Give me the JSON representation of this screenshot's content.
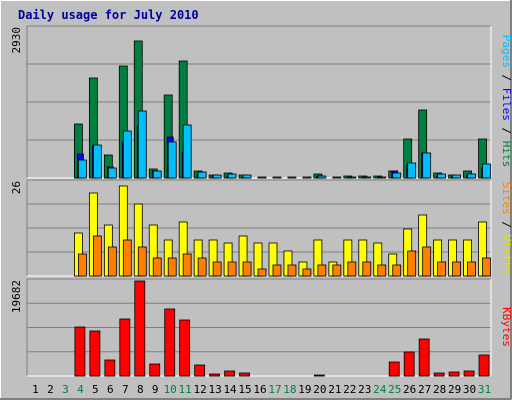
{
  "chart_data": {
    "type": "bar",
    "title": "Daily usage for July 2010",
    "categories": [
      "1",
      "2",
      "3",
      "4",
      "5",
      "6",
      "7",
      "8",
      "9",
      "10",
      "11",
      "12",
      "13",
      "14",
      "15",
      "16",
      "17",
      "18",
      "19",
      "20",
      "21",
      "22",
      "23",
      "24",
      "25",
      "26",
      "27",
      "28",
      "29",
      "30",
      "31"
    ],
    "weekend_days": [
      "3",
      "4",
      "10",
      "11",
      "17",
      "18",
      "24",
      "25",
      "31"
    ],
    "legend_position": "right",
    "grid": true,
    "panels": [
      {
        "id": "hits",
        "max_label": "2930",
        "ylim": [
          0,
          2930
        ],
        "series": [
          {
            "name": "Hits",
            "color": "#008040",
            "values": [
              0,
              0,
              0,
              1050,
              1950,
              450,
              2180,
              2680,
              170,
              1630,
              2280,
              130,
              60,
              90,
              50,
              0,
              0,
              0,
              0,
              70,
              0,
              30,
              30,
              30,
              130,
              770,
              1330,
              90,
              60,
              130,
              760
            ]
          },
          {
            "name": "Files",
            "color": "#0000ff",
            "values": [
              0,
              0,
              0,
              470,
              620,
              210,
              700,
              1020,
              130,
              810,
              500,
              80,
              30,
              40,
              20,
              0,
              0,
              0,
              0,
              30,
              0,
              0,
              0,
              0,
              130,
              260,
              490,
              40,
              20,
              50,
              200
            ]
          },
          {
            "name": "Pages",
            "color": "#00bfff",
            "values": [
              0,
              0,
              0,
              360,
              640,
              190,
              920,
              1300,
              130,
              700,
              1040,
              110,
              50,
              70,
              50,
              10,
              10,
              10,
              10,
              40,
              10,
              20,
              10,
              20,
              90,
              300,
              490,
              80,
              50,
              70,
              270
            ]
          }
        ]
      },
      {
        "id": "visits",
        "max_label": "26",
        "ylim": [
          0,
          26
        ],
        "series": [
          {
            "name": "Visits",
            "color": "#ffff00",
            "values": [
              0,
              0,
              0,
              12,
              23,
              14,
              25,
              20,
              14,
              10,
              15,
              10,
              10,
              9,
              11,
              9,
              9,
              7,
              4,
              10,
              4,
              10,
              10,
              9,
              6,
              13,
              17,
              10,
              10,
              10,
              15
            ]
          },
          {
            "name": "Sites",
            "color": "#ff8000",
            "values": [
              0,
              0,
              0,
              6,
              11,
              8,
              10,
              8,
              5,
              5,
              6,
              5,
              4,
              4,
              4,
              2,
              3,
              3,
              2,
              3,
              3,
              4,
              4,
              3,
              3,
              7,
              8,
              4,
              4,
              4,
              5
            ]
          }
        ]
      },
      {
        "id": "kbytes",
        "max_label": "19682",
        "ylim": [
          0,
          19682
        ],
        "series": [
          {
            "name": "KBytes",
            "color": "#ff0000",
            "values": [
              0,
              0,
              0,
              10100,
              9300,
              3400,
              11800,
              19682,
              2500,
              13900,
              11600,
              2300,
              500,
              1100,
              600,
              0,
              0,
              0,
              0,
              300,
              0,
              0,
              0,
              0,
              3000,
              5000,
              7600,
              700,
              900,
              1100,
              4300
            ]
          }
        ]
      }
    ]
  }
}
